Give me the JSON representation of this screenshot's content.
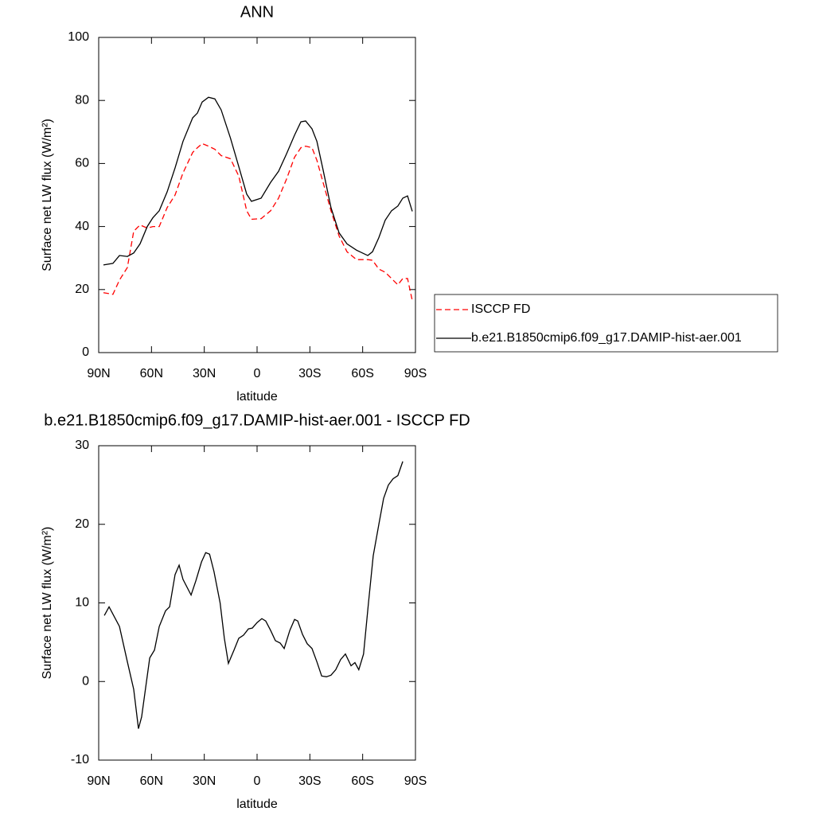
{
  "chart_data": [
    {
      "type": "line",
      "title": "ANN",
      "xlabel": "latitude",
      "ylabel": "Surface net LW flux (W/m²)",
      "xlim": [
        90,
        -90
      ],
      "xticks": [
        {
          "value": 90,
          "label": "90N"
        },
        {
          "value": 60,
          "label": "60N"
        },
        {
          "value": 30,
          "label": "30N"
        },
        0,
        {
          "value": -30,
          "label": "30S"
        },
        {
          "value": -60,
          "label": "60S"
        },
        {
          "value": -90,
          "label": "90S"
        }
      ],
      "ylim": [
        0,
        100
      ],
      "yticks": [
        0,
        20,
        40,
        60,
        80,
        100
      ],
      "legend": "right",
      "x": [
        87.3,
        81.9,
        78.2,
        73.7,
        70.1,
        66.5,
        62.4,
        59.2,
        55.6,
        51.1,
        46.6,
        42.1,
        36.6,
        33.9,
        31.2,
        27.6,
        24,
        20.4,
        15.1,
        10.4,
        5.9,
        3.2,
        -2.3,
        -7.7,
        -12.2,
        -16.7,
        -21.3,
        -24.9,
        -27.6,
        -31.2,
        -34,
        -37.5,
        -42,
        -46.6,
        -51.1,
        -56.5,
        -62.9,
        -65.6,
        -69.2,
        -72.8,
        -76.4,
        -80,
        -82.8,
        -85.5,
        -88.2
      ],
      "series": [
        {
          "name": "ISCCP FD",
          "color": "#ff0000",
          "line_style": "dashed",
          "values": [
            19,
            18.5,
            23,
            27,
            38.5,
            40.5,
            39.5,
            40,
            40,
            46,
            50,
            57,
            63.5,
            65,
            66.3,
            65.5,
            64.5,
            62.5,
            61.5,
            56,
            45,
            42.3,
            42.5,
            45,
            49,
            55,
            62,
            65,
            65.5,
            65,
            61,
            54,
            45,
            37,
            32,
            29.5,
            29.5,
            29.3,
            26.5,
            25.5,
            23.5,
            21.5,
            23.5,
            23.5,
            16.5
          ]
        },
        {
          "name": "b.e21.B1850cmip6.f09_g17.DAMIP-hist-aer.001",
          "color": "#000000",
          "line_style": "solid",
          "values": [
            27.8,
            28.3,
            30.8,
            30.5,
            31.6,
            34.5,
            40,
            42.8,
            45,
            51,
            58.6,
            67,
            74.5,
            76,
            79.5,
            81,
            80.5,
            77,
            68,
            59,
            50.3,
            48,
            49,
            54,
            57.5,
            63,
            69,
            73.2,
            73.5,
            71,
            67,
            58,
            46,
            38,
            34.5,
            32.5,
            30.8,
            32,
            36.5,
            42,
            45,
            46.5,
            49,
            49.7,
            44.8
          ]
        }
      ]
    },
    {
      "type": "line",
      "title": "b.e21.B1850cmip6.f09_g17.DAMIP-hist-aer.001 - ISCCP FD",
      "xlabel": "latitude",
      "ylabel": "Surface net LW flux (W/m²)",
      "xlim": [
        90,
        -90
      ],
      "xticks": [
        {
          "value": 90,
          "label": "90N"
        },
        {
          "value": 60,
          "label": "60N"
        },
        {
          "value": 30,
          "label": "30N"
        },
        0,
        {
          "value": -30,
          "label": "30S"
        },
        {
          "value": -60,
          "label": "60S"
        },
        {
          "value": -90,
          "label": "90S"
        }
      ],
      "ylim": [
        -10,
        30
      ],
      "yticks": [
        -10,
        0,
        10,
        20,
        30
      ],
      "color": "#000000",
      "x": [
        86.8,
        84.1,
        78.2,
        73.7,
        70.1,
        67.4,
        65.6,
        61,
        58.3,
        55.6,
        52,
        49.7,
        46.6,
        44.3,
        42.1,
        37.5,
        34.8,
        31.6,
        29.2,
        27,
        24.5,
        21,
        18.6,
        16.3,
        13.1,
        10.4,
        7.7,
        4.9,
        2.7,
        0,
        -2.7,
        -4.9,
        -7.7,
        -10.4,
        -13.1,
        -15.4,
        -18.6,
        -21.3,
        -23.1,
        -25.8,
        -28.5,
        -31.2,
        -34,
        -36.7,
        -39.4,
        -42,
        -44.7,
        -47.5,
        -50.2,
        -53.4,
        -55.6,
        -57.8,
        -60.5,
        -63.3,
        -66,
        -69.2,
        -71.9,
        -74.6,
        -77.3,
        -80,
        -82.8
      ],
      "values": [
        8.4,
        9.5,
        7,
        2.5,
        -1,
        -6,
        -4.5,
        3,
        4,
        7,
        9,
        9.5,
        13.6,
        14.8,
        13,
        11,
        12.8,
        15.2,
        16.4,
        16.2,
        14,
        10,
        5.5,
        2.3,
        4,
        5.5,
        5.9,
        6.7,
        6.8,
        7.5,
        8,
        7.7,
        6.5,
        5.2,
        4.9,
        4.2,
        6.5,
        7.9,
        7.7,
        6,
        4.8,
        4.2,
        2.5,
        0.7,
        0.6,
        0.8,
        1.5,
        2.8,
        3.5,
        2,
        2.4,
        1.5,
        3.5,
        10,
        16,
        20,
        23.3,
        25,
        25.8,
        26.2,
        28
      ]
    }
  ]
}
